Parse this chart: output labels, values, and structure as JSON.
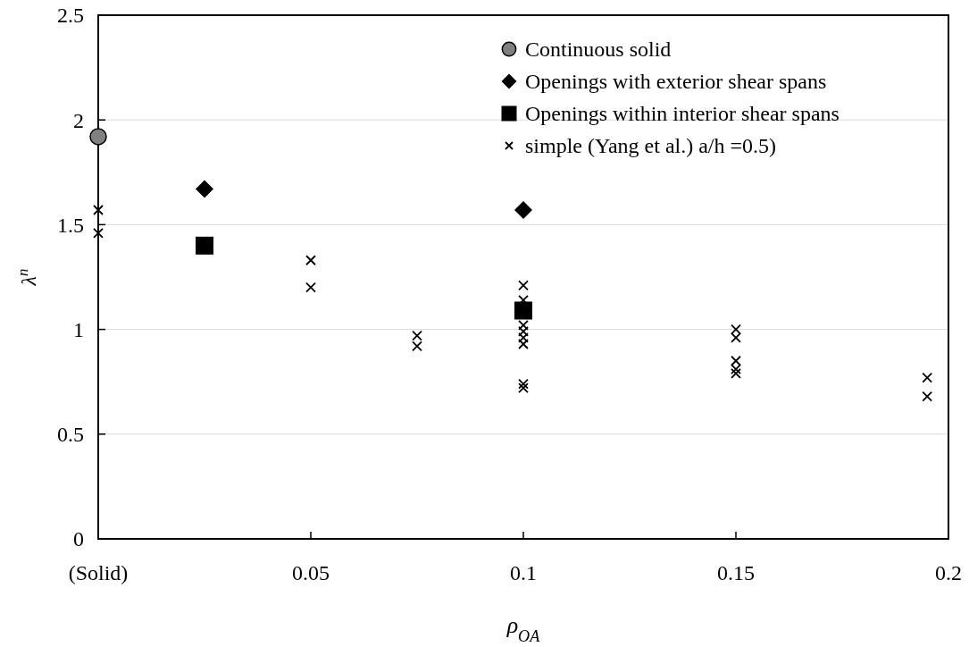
{
  "chart_data": {
    "type": "scatter",
    "xlabel": "ρ$_{OA}$",
    "ylabel": "λ$^{n}$",
    "xlim": [
      0,
      0.2
    ],
    "xticks": [
      {
        "value": 0,
        "label": "(Solid)"
      },
      0.05,
      0.1,
      0.15,
      0.2
    ],
    "ylim": [
      0,
      2.5
    ],
    "yticks": [
      0,
      0.5,
      1,
      1.5,
      2,
      2.5
    ],
    "grid": "y",
    "legend": "top right",
    "series": [
      {
        "name": "Continuous solid",
        "color": "#808080",
        "marker": "circle",
        "x": [
          0
        ],
        "values": [
          1.92
        ]
      },
      {
        "name": "Openings with exterior shear spans",
        "color": "#000000",
        "marker": "diamond",
        "x": [
          0.025,
          0.1
        ],
        "values": [
          1.67,
          1.57
        ]
      },
      {
        "name": "Openings within interior shear spans",
        "color": "#000000",
        "marker": "square",
        "x": [
          0.025,
          0.1
        ],
        "values": [
          1.4,
          1.09
        ]
      },
      {
        "name": "simple (Yang et al.) a/h =0.5)",
        "color": "#000000",
        "marker": "cross",
        "x": [
          0,
          0,
          0.05,
          0.05,
          0.075,
          0.075,
          0.1,
          0.1,
          0.1,
          0.1,
          0.1,
          0.1,
          0.1,
          0.1,
          0.15,
          0.15,
          0.15,
          0.15,
          0.15,
          0.195,
          0.195
        ],
        "values": [
          1.57,
          1.46,
          1.33,
          1.2,
          0.97,
          0.92,
          1.21,
          1.14,
          1.02,
          0.99,
          0.96,
          0.93,
          0.74,
          0.72,
          1.0,
          0.96,
          0.85,
          0.81,
          0.79,
          0.77,
          0.68
        ]
      }
    ]
  }
}
